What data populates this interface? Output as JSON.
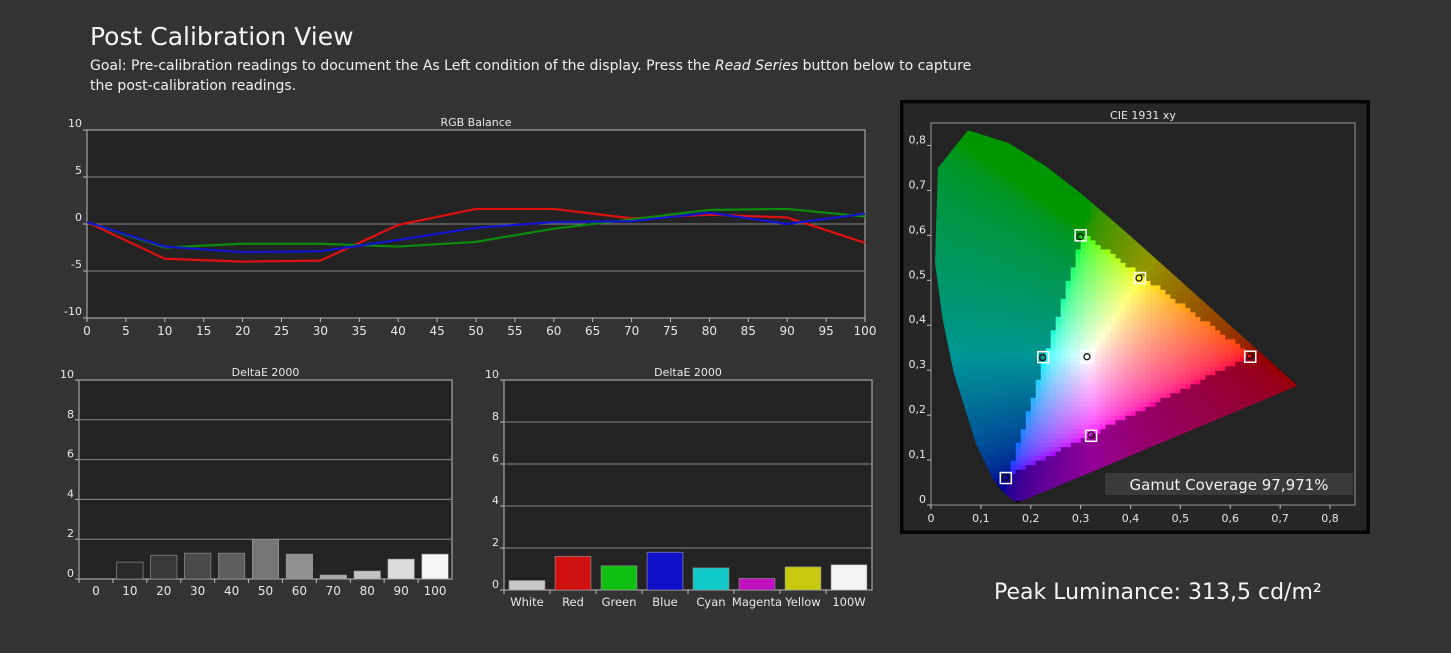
{
  "page": {
    "title": "Post Calibration View",
    "goal_prefix": "Goal: Pre-calibration readings to document the As Left condition of the display. Press the ",
    "goal_emphasis": "Read Series",
    "goal_suffix": " button below to capture the post-calibration readings.",
    "peak_luminance": "Peak Luminance: 313,5 cd/m²"
  },
  "colors": {
    "background": "#333333",
    "plot_bg": "#232323",
    "red": "#e01010",
    "green": "#0b8a0b",
    "blue": "#1414d0"
  },
  "chart_data": [
    {
      "id": "rgb",
      "type": "line",
      "title": "RGB Balance",
      "xlim": [
        0,
        100
      ],
      "ylim": [
        -10,
        10
      ],
      "x_ticks": [
        0,
        5,
        10,
        15,
        20,
        25,
        30,
        35,
        40,
        45,
        50,
        55,
        60,
        65,
        70,
        75,
        80,
        85,
        90,
        95,
        100
      ],
      "y_ticks": [
        -10,
        -5,
        0,
        5,
        10
      ],
      "y_tick_labels": [
        "-10",
        "-5",
        "0",
        "5",
        "10"
      ],
      "grid": true,
      "x": [
        0,
        10,
        20,
        30,
        40,
        50,
        60,
        70,
        80,
        90,
        100
      ],
      "series": [
        {
          "color": "#e01010",
          "values": [
            0.2,
            -3.7,
            -4.0,
            -3.9,
            -0.1,
            1.6,
            1.6,
            0.6,
            1.0,
            0.7,
            -2.0
          ]
        },
        {
          "color": "#0b8a0b",
          "values": [
            0.2,
            -2.5,
            -2.1,
            -2.1,
            -2.4,
            -1.9,
            -0.5,
            0.5,
            1.5,
            1.6,
            0.8
          ]
        },
        {
          "color": "#1414d0",
          "values": [
            0.2,
            -2.4,
            -3.0,
            -2.9,
            -1.7,
            -0.4,
            0.2,
            0.3,
            1.2,
            0.0,
            1.1
          ]
        }
      ]
    },
    {
      "id": "grayscale",
      "type": "bar",
      "title": "DeltaE 2000",
      "ylim": [
        0,
        10
      ],
      "y_ticks": [
        0,
        2,
        4,
        6,
        8,
        10
      ],
      "y_tick_labels": [
        "0",
        "2",
        "4",
        "6",
        "8",
        "10"
      ],
      "grid": true,
      "categories": [
        "0",
        "10",
        "20",
        "30",
        "40",
        "50",
        "60",
        "70",
        "80",
        "90",
        "100"
      ],
      "values": [
        0.0,
        0.85,
        1.2,
        1.3,
        1.3,
        2.0,
        1.25,
        0.2,
        0.4,
        1.0,
        1.25
      ],
      "bar_colors": [
        "#161616",
        "#2a2a2a",
        "#3a3a3a",
        "#4a4a4a",
        "#5e5e5e",
        "#767676",
        "#909090",
        "#a8a8a8",
        "#c2c2c2",
        "#dcdcdc",
        "#f6f6f6"
      ]
    },
    {
      "id": "colors",
      "type": "bar",
      "title": "DeltaE 2000",
      "ylim": [
        0,
        10
      ],
      "y_ticks": [
        0,
        2,
        4,
        6,
        8,
        10
      ],
      "y_tick_labels": [
        "0",
        "2",
        "4",
        "6",
        "8",
        "10"
      ],
      "grid": true,
      "categories": [
        "White",
        "Red",
        "Green",
        "Blue",
        "Cyan",
        "Magenta",
        "Yellow",
        "100W"
      ],
      "values": [
        0.45,
        1.6,
        1.15,
        1.8,
        1.05,
        0.55,
        1.1,
        1.2
      ],
      "bar_colors": [
        "#c8c8c8",
        "#d01010",
        "#10c010",
        "#1010c8",
        "#10c8c8",
        "#c010c0",
        "#c8c810",
        "#f4f4f4"
      ]
    },
    {
      "id": "cie",
      "type": "scatter",
      "title": "CIE 1931 xy",
      "xlim": [
        0,
        0.85
      ],
      "ylim": [
        0,
        0.85
      ],
      "x_ticks": [
        0,
        0.1,
        0.2,
        0.3,
        0.4,
        0.5,
        0.6,
        0.7,
        0.8
      ],
      "x_tick_labels": [
        "0",
        "0,1",
        "0,2",
        "0,3",
        "0,4",
        "0,5",
        "0,6",
        "0,7",
        "0,8"
      ],
      "y_ticks": [
        0,
        0.1,
        0.2,
        0.3,
        0.4,
        0.5,
        0.6,
        0.7,
        0.8
      ],
      "y_tick_labels": [
        "0",
        "0,1",
        "0,2",
        "0,3",
        "0,4",
        "0,5",
        "0,6",
        "0,7",
        "0,8"
      ],
      "gamut_triangle": [
        [
          0.64,
          0.33
        ],
        [
          0.3,
          0.6
        ],
        [
          0.15,
          0.06
        ]
      ],
      "targets": [
        {
          "x": 0.64,
          "y": 0.33
        },
        {
          "x": 0.3,
          "y": 0.6
        },
        {
          "x": 0.15,
          "y": 0.06
        },
        {
          "x": 0.225,
          "y": 0.329
        },
        {
          "x": 0.321,
          "y": 0.154
        },
        {
          "x": 0.419,
          "y": 0.505
        },
        {
          "x": 0.3127,
          "y": 0.329
        }
      ],
      "measured": [
        {
          "x": 0.64,
          "y": 0.331
        },
        {
          "x": 0.299,
          "y": 0.597
        },
        {
          "x": 0.15,
          "y": 0.061
        },
        {
          "x": 0.224,
          "y": 0.328
        },
        {
          "x": 0.321,
          "y": 0.156
        },
        {
          "x": 0.417,
          "y": 0.505
        },
        {
          "x": 0.3127,
          "y": 0.33
        }
      ],
      "annotation": "Gamut Coverage 97,971%"
    }
  ]
}
